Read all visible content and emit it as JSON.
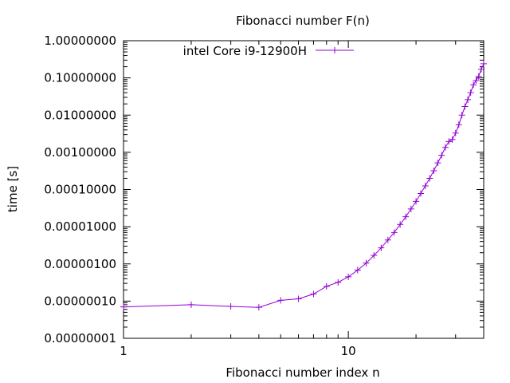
{
  "chart_data": {
    "type": "line",
    "title": "Fibonacci number F(n)",
    "xlabel": "Fibonacci number index n",
    "ylabel": "time [s]",
    "x_scale": "log",
    "y_scale": "log",
    "xlim": [
      1,
      40
    ],
    "ylim": [
      1e-08,
      1
    ],
    "x_ticks": [
      {
        "value": 1,
        "label": "1"
      },
      {
        "value": 10,
        "label": "10"
      }
    ],
    "y_ticks": [
      {
        "value": 1e-08,
        "label": "0.00000001"
      },
      {
        "value": 1e-07,
        "label": "0.00000010"
      },
      {
        "value": 1e-06,
        "label": "0.00000100"
      },
      {
        "value": 1e-05,
        "label": "0.00001000"
      },
      {
        "value": 0.0001,
        "label": "0.00010000"
      },
      {
        "value": 0.001,
        "label": "0.00100000"
      },
      {
        "value": 0.01,
        "label": "0.01000000"
      },
      {
        "value": 0.1,
        "label": "0.10000000"
      },
      {
        "value": 1,
        "label": "1.00000000"
      }
    ],
    "grid": false,
    "legend_position": "top-left",
    "colors": {
      "series": "#9400d3",
      "axis": "#000000"
    },
    "series": [
      {
        "name": "intel Core i9-12900H",
        "marker": "plus",
        "x": [
          1,
          2,
          3,
          4,
          5,
          6,
          7,
          8,
          9,
          10,
          11,
          12,
          13,
          14,
          15,
          16,
          17,
          18,
          19,
          20,
          21,
          22,
          23,
          24,
          25,
          26,
          27,
          28,
          29,
          30,
          31,
          32,
          33,
          34,
          35,
          36,
          37,
          38,
          39,
          40
        ],
        "values": [
          7e-08,
          8e-08,
          7.2e-08,
          6.8e-08,
          1.05e-07,
          1.15e-07,
          1.55e-07,
          2.5e-07,
          3.2e-07,
          4.5e-07,
          6.8e-07,
          1.05e-06,
          1.7e-06,
          2.7e-06,
          4.4e-06,
          7e-06,
          1.15e-05,
          1.85e-05,
          3e-05,
          4.8e-05,
          7.8e-05,
          0.000125,
          0.0002,
          0.00032,
          0.00052,
          0.00083,
          0.00135,
          0.00195,
          0.0022,
          0.0033,
          0.0055,
          0.01,
          0.017,
          0.026,
          0.04,
          0.065,
          0.085,
          0.11,
          0.17,
          0.24
        ]
      }
    ]
  }
}
